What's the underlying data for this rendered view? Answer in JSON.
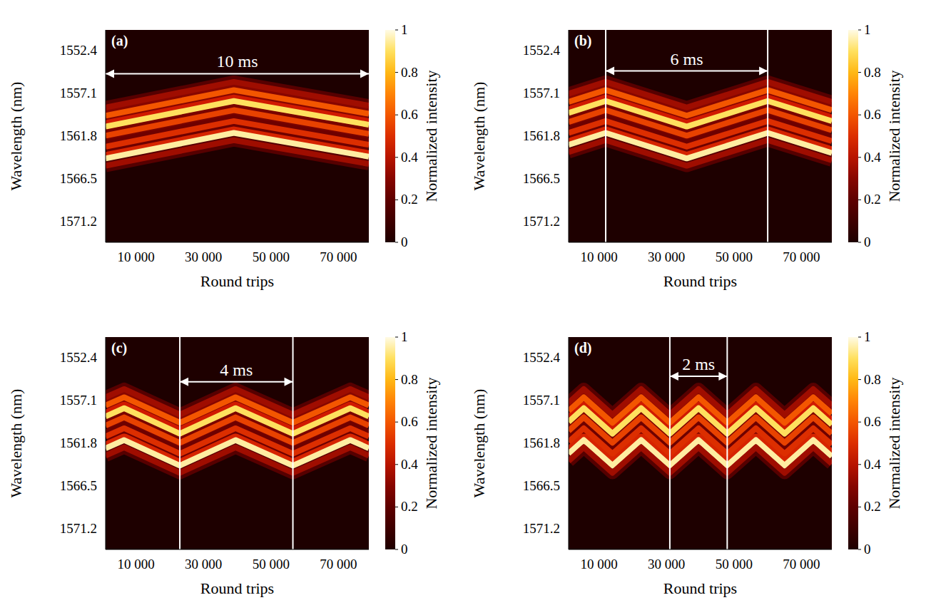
{
  "chart_data": [
    {
      "type": "heatmap",
      "title": "(a)",
      "x_label": "Round trips",
      "y_label": "Wavelength (nm)",
      "grid": false,
      "xlim": [
        1000,
        79000
      ],
      "xticks": [
        {
          "value": 10000,
          "label": "10 000"
        },
        {
          "value": 30000,
          "label": "30 000"
        },
        {
          "value": 50000,
          "label": "50 000"
        },
        {
          "value": 70000,
          "label": "70 000"
        }
      ],
      "ylim": [
        1550.2,
        1573.5
      ],
      "yticks": [
        1552.4,
        1557.1,
        1561.8,
        1566.5,
        1571.2
      ],
      "x": [
        1000,
        39000,
        79000
      ],
      "series": [
        {
          "intensity": 0.35,
          "values": [
            1558.7,
            1555.9,
            1558.5
          ]
        },
        {
          "intensity": 0.6,
          "values": [
            1559.6,
            1556.8,
            1559.4
          ]
        },
        {
          "intensity": 0.9,
          "values": [
            1560.8,
            1558.0,
            1560.6
          ]
        },
        {
          "intensity": 0.55,
          "values": [
            1561.8,
            1559.0,
            1561.6
          ]
        },
        {
          "intensity": 0.5,
          "values": [
            1563.0,
            1560.2,
            1562.8
          ]
        },
        {
          "intensity": 0.95,
          "values": [
            1564.3,
            1561.5,
            1564.1
          ]
        },
        {
          "intensity": 0.35,
          "values": [
            1565.1,
            1562.3,
            1564.9
          ]
        }
      ],
      "annotation": {
        "text": "10 ms",
        "x": [
          1000,
          79000
        ],
        "y": 1555.0
      },
      "colorbar": {
        "label": "Normalized intensity",
        "range": [
          0,
          1
        ],
        "ticks": [
          0,
          0.2,
          0.4,
          0.6,
          0.8,
          1
        ]
      }
    },
    {
      "type": "heatmap",
      "title": "(b)",
      "x_label": "Round trips",
      "y_label": "Wavelength (nm)",
      "grid": false,
      "xlim": [
        1000,
        79000
      ],
      "xticks": [
        {
          "value": 10000,
          "label": "10 000"
        },
        {
          "value": 30000,
          "label": "30 000"
        },
        {
          "value": 50000,
          "label": "50 000"
        },
        {
          "value": 70000,
          "label": "70 000"
        }
      ],
      "ylim": [
        1550.2,
        1573.5
      ],
      "yticks": [
        1552.4,
        1557.1,
        1561.8,
        1566.5,
        1571.2
      ],
      "x": [
        1000,
        12000,
        36000,
        60000,
        79000
      ],
      "series": [
        {
          "intensity": 0.35,
          "values": [
            1557.2,
            1555.9,
            1558.7,
            1555.9,
            1558.1
          ]
        },
        {
          "intensity": 0.6,
          "values": [
            1558.1,
            1556.8,
            1559.6,
            1556.8,
            1559.0
          ]
        },
        {
          "intensity": 0.9,
          "values": [
            1559.3,
            1558.0,
            1560.8,
            1558.0,
            1560.2
          ]
        },
        {
          "intensity": 0.55,
          "values": [
            1560.3,
            1559.0,
            1561.8,
            1559.0,
            1561.2
          ]
        },
        {
          "intensity": 0.5,
          "values": [
            1561.5,
            1560.2,
            1563.0,
            1560.2,
            1562.4
          ]
        },
        {
          "intensity": 0.95,
          "values": [
            1562.8,
            1561.5,
            1564.3,
            1561.5,
            1563.7
          ]
        },
        {
          "intensity": 0.35,
          "values": [
            1563.6,
            1562.3,
            1565.1,
            1562.3,
            1564.5
          ]
        }
      ],
      "vlines": [
        12000,
        60000
      ],
      "annotation": {
        "text": "6 ms",
        "x": [
          12000,
          60000
        ],
        "y": 1554.7
      },
      "colorbar": {
        "label": "Normalized intensity",
        "range": [
          0,
          1
        ],
        "ticks": [
          0,
          0.2,
          0.4,
          0.6,
          0.8,
          1
        ]
      }
    },
    {
      "type": "heatmap",
      "title": "(c)",
      "x_label": "Round trips",
      "y_label": "Wavelength (nm)",
      "grid": false,
      "xlim": [
        1000,
        79000
      ],
      "xticks": [
        {
          "value": 10000,
          "label": "10 000"
        },
        {
          "value": 30000,
          "label": "30 000"
        },
        {
          "value": 50000,
          "label": "50 000"
        },
        {
          "value": 70000,
          "label": "70 000"
        }
      ],
      "ylim": [
        1550.2,
        1573.5
      ],
      "yticks": [
        1552.4,
        1557.1,
        1561.8,
        1566.5,
        1571.2
      ],
      "x": [
        1000,
        6500,
        23000,
        39500,
        56500,
        73500,
        79000
      ],
      "series": [
        {
          "intensity": 0.35,
          "values": [
            1556.8,
            1555.9,
            1558.7,
            1555.9,
            1558.7,
            1555.9,
            1556.8
          ]
        },
        {
          "intensity": 0.6,
          "values": [
            1557.7,
            1556.8,
            1559.6,
            1556.8,
            1559.6,
            1556.8,
            1557.7
          ]
        },
        {
          "intensity": 0.9,
          "values": [
            1558.9,
            1558.0,
            1560.8,
            1558.0,
            1560.8,
            1558.0,
            1558.9
          ]
        },
        {
          "intensity": 0.55,
          "values": [
            1559.9,
            1559.0,
            1561.8,
            1559.0,
            1561.8,
            1559.0,
            1559.9
          ]
        },
        {
          "intensity": 0.5,
          "values": [
            1561.1,
            1560.2,
            1563.0,
            1560.2,
            1563.0,
            1560.2,
            1561.1
          ]
        },
        {
          "intensity": 0.95,
          "values": [
            1562.4,
            1561.5,
            1564.3,
            1561.5,
            1564.3,
            1561.5,
            1562.4
          ]
        },
        {
          "intensity": 0.35,
          "values": [
            1563.2,
            1562.3,
            1565.1,
            1562.3,
            1565.1,
            1562.3,
            1563.2
          ]
        }
      ],
      "vlines": [
        23000,
        56500
      ],
      "annotation": {
        "text": "4 ms",
        "x": [
          23000,
          56500
        ],
        "y": 1555.1
      },
      "colorbar": {
        "label": "Normalized intensity",
        "range": [
          0,
          1
        ],
        "ticks": [
          0,
          0.2,
          0.4,
          0.6,
          0.8,
          1
        ]
      }
    },
    {
      "type": "heatmap",
      "title": "(d)",
      "x_label": "Round trips",
      "y_label": "Wavelength (nm)",
      "grid": false,
      "xlim": [
        1000,
        79000
      ],
      "xticks": [
        {
          "value": 10000,
          "label": "10 000"
        },
        {
          "value": 30000,
          "label": "30 000"
        },
        {
          "value": 50000,
          "label": "50 000"
        },
        {
          "value": 70000,
          "label": "70 000"
        }
      ],
      "ylim": [
        1550.2,
        1573.5
      ],
      "yticks": [
        1552.4,
        1557.1,
        1561.8,
        1566.5,
        1571.2
      ],
      "x": [
        1000,
        5500,
        14000,
        22500,
        31000,
        39500,
        48000,
        56500,
        65000,
        73500,
        79000
      ],
      "series": [
        {
          "intensity": 0.35,
          "values": [
            1557.4,
            1555.9,
            1558.7,
            1555.9,
            1558.7,
            1555.9,
            1558.7,
            1555.9,
            1558.7,
            1555.9,
            1557.7
          ]
        },
        {
          "intensity": 0.6,
          "values": [
            1558.3,
            1556.8,
            1559.6,
            1556.8,
            1559.6,
            1556.8,
            1559.6,
            1556.8,
            1559.6,
            1556.8,
            1558.6
          ]
        },
        {
          "intensity": 0.9,
          "values": [
            1559.5,
            1558.0,
            1560.8,
            1558.0,
            1560.8,
            1558.0,
            1560.8,
            1558.0,
            1560.8,
            1558.0,
            1559.8
          ]
        },
        {
          "intensity": 0.55,
          "values": [
            1560.5,
            1559.0,
            1561.8,
            1559.0,
            1561.8,
            1559.0,
            1561.8,
            1559.0,
            1561.8,
            1559.0,
            1560.8
          ]
        },
        {
          "intensity": 0.5,
          "values": [
            1561.7,
            1560.2,
            1563.0,
            1560.2,
            1563.0,
            1560.2,
            1563.0,
            1560.2,
            1563.0,
            1560.2,
            1562.0
          ]
        },
        {
          "intensity": 0.95,
          "values": [
            1563.0,
            1561.5,
            1564.3,
            1561.5,
            1564.3,
            1561.5,
            1564.3,
            1561.5,
            1564.3,
            1561.5,
            1563.3
          ]
        },
        {
          "intensity": 0.35,
          "values": [
            1563.8,
            1562.3,
            1565.1,
            1562.3,
            1565.1,
            1562.3,
            1565.1,
            1562.3,
            1565.1,
            1562.3,
            1564.1
          ]
        }
      ],
      "vlines": [
        31000,
        48000
      ],
      "annotation": {
        "text": "2 ms",
        "x": [
          31000,
          48000
        ],
        "y": 1554.5
      },
      "colorbar": {
        "label": "Normalized intensity",
        "range": [
          0,
          1
        ],
        "ticks": [
          0,
          0.2,
          0.4,
          0.6,
          0.8,
          1
        ]
      }
    }
  ]
}
